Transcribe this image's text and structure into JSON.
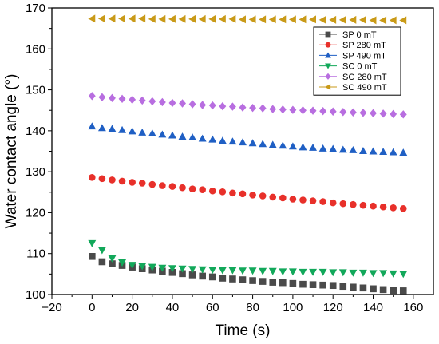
{
  "chart_data": {
    "type": "scatter",
    "title": "",
    "xlabel": "Time (s)",
    "ylabel": "Water contact angle (°)",
    "xlim": [
      -20,
      170
    ],
    "ylim": [
      100,
      170
    ],
    "xticks": [
      -20,
      0,
      20,
      40,
      60,
      80,
      100,
      120,
      140,
      160
    ],
    "yticks": [
      100,
      110,
      120,
      130,
      140,
      150,
      160,
      170
    ],
    "grid": false,
    "legend_position": "top-right",
    "x": [
      0,
      5,
      10,
      15,
      20,
      25,
      30,
      35,
      40,
      45,
      50,
      55,
      60,
      65,
      70,
      75,
      80,
      85,
      90,
      95,
      100,
      105,
      110,
      115,
      120,
      125,
      130,
      135,
      140,
      145,
      150,
      155
    ],
    "series": [
      {
        "name": "SP 0 mT",
        "marker": "square",
        "color": "#4a4a4a",
        "values": [
          109.3,
          108.0,
          107.5,
          107.1,
          106.7,
          106.3,
          106.0,
          105.7,
          105.4,
          105.1,
          104.8,
          104.5,
          104.3,
          104.0,
          103.8,
          103.6,
          103.4,
          103.2,
          103.0,
          102.9,
          102.7,
          102.5,
          102.4,
          102.3,
          102.2,
          102.0,
          101.8,
          101.6,
          101.4,
          101.2,
          101.0,
          100.9
        ]
      },
      {
        "name": "SP 280 mT",
        "marker": "circle",
        "color": "#e8302a",
        "values": [
          128.6,
          128.3,
          128.0,
          127.7,
          127.4,
          127.2,
          126.9,
          126.6,
          126.4,
          126.1,
          125.8,
          125.6,
          125.3,
          125.1,
          124.8,
          124.6,
          124.3,
          124.1,
          123.8,
          123.6,
          123.3,
          123.1,
          122.9,
          122.7,
          122.4,
          122.2,
          122.0,
          121.8,
          121.6,
          121.4,
          121.2,
          121.0
        ]
      },
      {
        "name": "SP 490 mT",
        "marker": "triangle-up",
        "color": "#1f5fc4",
        "values": [
          141.1,
          140.7,
          140.5,
          140.2,
          139.9,
          139.6,
          139.4,
          139.1,
          138.9,
          138.6,
          138.4,
          138.1,
          137.9,
          137.6,
          137.4,
          137.2,
          137.0,
          136.8,
          136.6,
          136.4,
          136.2,
          136.0,
          135.9,
          135.7,
          135.6,
          135.4,
          135.3,
          135.1,
          135.0,
          134.9,
          134.8,
          134.7
        ]
      },
      {
        "name": "SC 0 mT",
        "marker": "triangle-down",
        "color": "#12a85a",
        "values": [
          112.5,
          110.8,
          108.8,
          107.8,
          107.2,
          106.9,
          106.7,
          106.5,
          106.4,
          106.3,
          106.2,
          106.1,
          106.0,
          105.9,
          105.9,
          105.8,
          105.8,
          105.7,
          105.7,
          105.6,
          105.6,
          105.5,
          105.5,
          105.5,
          105.4,
          105.4,
          105.3,
          105.3,
          105.2,
          105.2,
          105.1,
          105.0
        ]
      },
      {
        "name": "SC 280 mT",
        "marker": "diamond",
        "color": "#b86ee0",
        "values": [
          148.5,
          148.2,
          148.0,
          147.8,
          147.6,
          147.4,
          147.2,
          147.0,
          146.8,
          146.7,
          146.5,
          146.3,
          146.2,
          146.0,
          145.9,
          145.7,
          145.6,
          145.5,
          145.3,
          145.2,
          145.1,
          145.0,
          144.9,
          144.8,
          144.7,
          144.6,
          144.5,
          144.4,
          144.3,
          144.2,
          144.1,
          144.0
        ]
      },
      {
        "name": "SC 490 mT",
        "marker": "triangle-left",
        "color": "#c99a18",
        "values": [
          167.4,
          167.4,
          167.4,
          167.4,
          167.4,
          167.4,
          167.3,
          167.3,
          167.3,
          167.3,
          167.3,
          167.3,
          167.3,
          167.3,
          167.3,
          167.2,
          167.2,
          167.2,
          167.2,
          167.2,
          167.2,
          167.2,
          167.2,
          167.1,
          167.1,
          167.1,
          167.1,
          167.1,
          167.0,
          167.0,
          167.0,
          167.0
        ]
      }
    ]
  }
}
